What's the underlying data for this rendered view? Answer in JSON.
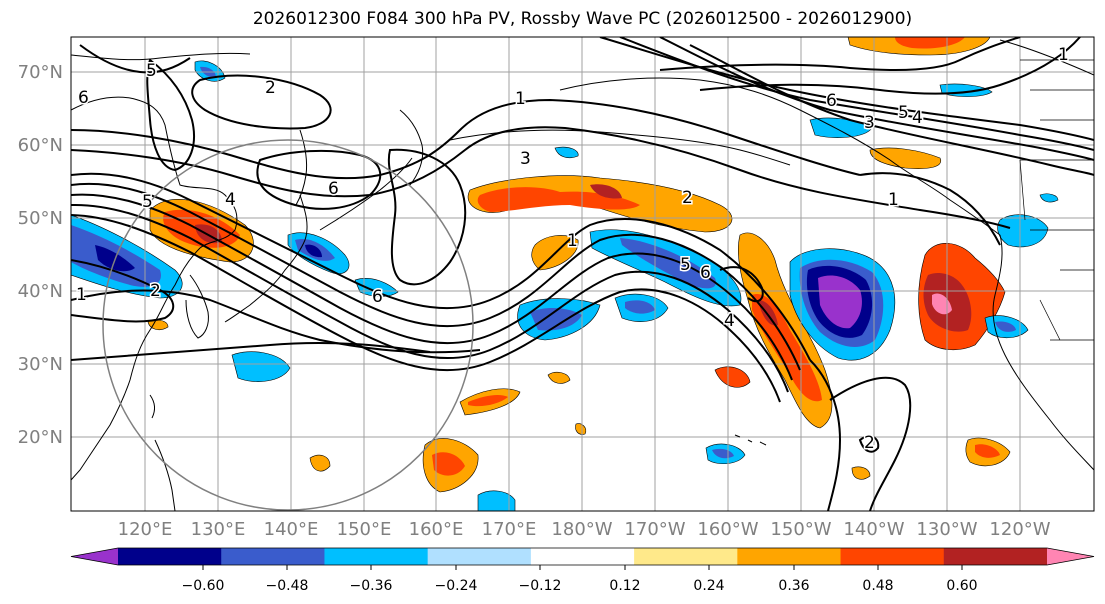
{
  "title": "2026012300 F084 300 hPa PV, Rossby Wave PC (2026012500 - 2026012900)",
  "map": {
    "latitude_labels": [
      "70°N",
      "60°N",
      "50°N",
      "40°N",
      "30°N",
      "20°N"
    ],
    "longitude_labels": [
      "120°E",
      "130°E",
      "140°E",
      "150°E",
      "160°E",
      "170°E",
      "180°W",
      "170°W",
      "160°W",
      "150°W",
      "140°W",
      "130°W",
      "120°W"
    ],
    "contour_labels": [
      "5",
      "2",
      "6",
      "1",
      "3",
      "6",
      "5",
      "4",
      "6",
      "2",
      "4",
      "3",
      "5",
      "1",
      "6",
      "2",
      "1",
      "5",
      "6",
      "4",
      "1",
      "2",
      "1"
    ],
    "contour_color": "#000000",
    "grid_color": "#a0a0a0",
    "circle_color": "#808080"
  },
  "colorbar": {
    "tick_labels": [
      "−0.60",
      "−0.48",
      "−0.36",
      "−0.24",
      "−0.12",
      "0.12",
      "0.24",
      "0.36",
      "0.48",
      "0.60"
    ],
    "colors": [
      "#9932cc",
      "#00008b",
      "#3a5ccc",
      "#00bfff",
      "#b0e0ff",
      "#ffffff",
      "#ffe98a",
      "#ffa500",
      "#ff4500",
      "#b22222",
      "#ff85b3"
    ]
  }
}
